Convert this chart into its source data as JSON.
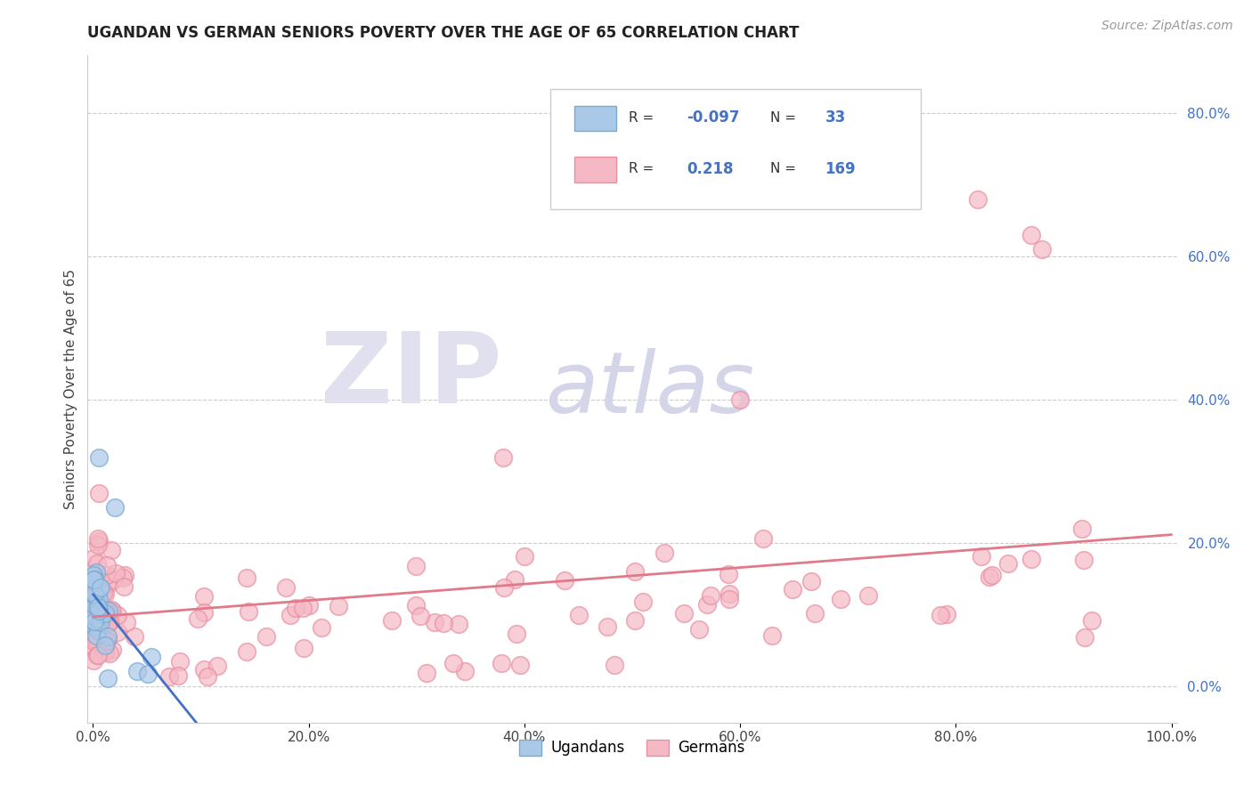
{
  "title": "UGANDAN VS GERMAN SENIORS POVERTY OVER THE AGE OF 65 CORRELATION CHART",
  "source": "Source: ZipAtlas.com",
  "ylabel": "Seniors Poverty Over the Age of 65",
  "xlim": [
    -0.005,
    1.005
  ],
  "ylim": [
    -0.05,
    0.88
  ],
  "xticks": [
    0.0,
    0.2,
    0.4,
    0.6,
    0.8,
    1.0
  ],
  "xticklabels": [
    "0.0%",
    "20.0%",
    "40.0%",
    "60.0%",
    "80.0%",
    "100.0%"
  ],
  "yticks_right": [
    0.0,
    0.2,
    0.4,
    0.6,
    0.8
  ],
  "yticklabels_right": [
    "0.0%",
    "20.0%",
    "40.0%",
    "60.0%",
    "80.0%"
  ],
  "ugandan_color": "#aac8e8",
  "german_color": "#f5b8c5",
  "ugandan_edge": "#7aaad0",
  "german_edge": "#e88fa0",
  "ugandan_trend_color": "#4472c4",
  "german_trend_color": "#e07a8a",
  "ugandan_trend_dash": "#aac8e8",
  "german_trend_dash": "#f5b8c5",
  "legend_ugandan_face": "#aac8e8",
  "legend_german_face": "#f5b8c5",
  "R_ugandan": -0.097,
  "N_ugandan": 33,
  "R_german": 0.218,
  "N_german": 169,
  "title_fontsize": 12,
  "source_fontsize": 10,
  "axis_tick_fontsize": 11,
  "right_tick_color": "#4472c4",
  "grid_color": "#cccccc",
  "watermark_zip_color": "#e0e0ef",
  "watermark_atlas_color": "#d5d5ea"
}
